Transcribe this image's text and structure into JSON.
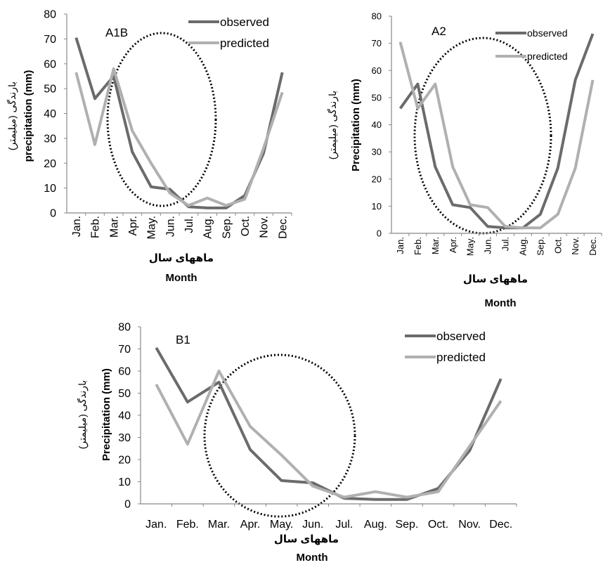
{
  "colors": {
    "observed": "#6b6b6b",
    "predicted": "#b0b0b0",
    "axis": "#888888",
    "circle": "#000000"
  },
  "chart_data": [
    {
      "type": "line",
      "panel_label": "A1B",
      "ylabel_fa": "بارندگی (میلیمتر)",
      "ylabel_en": "precipitation (mm)",
      "xlabel_fa": "ماههای سال",
      "xlabel_en": "Month",
      "ylim": [
        0,
        80
      ],
      "yticks": [
        "0",
        "10",
        "20",
        "30",
        "40",
        "50",
        "60",
        "70",
        "80"
      ],
      "categories": [
        "Jan.",
        "Feb.",
        "Mar.",
        "Apr.",
        "May.",
        "Jun.",
        "Jul.",
        "Aug.",
        "Sep.",
        "Oct.",
        "Nov.",
        "Dec."
      ],
      "series": [
        {
          "name": "observed",
          "values": [
            70.5,
            46,
            55,
            24.5,
            10.5,
            9.5,
            2.5,
            2,
            2,
            7,
            24,
            56.5
          ]
        },
        {
          "name": "predicted",
          "values": [
            56.5,
            27.5,
            58,
            33,
            20,
            8,
            3,
            6,
            3,
            5.5,
            26,
            48.5
          ]
        }
      ],
      "legend": "top-right",
      "grid": false
    },
    {
      "type": "line",
      "panel_label": "A2",
      "ylabel_fa": "بارندگی (میلیمتر)",
      "ylabel_en": "Precipitation (mm)",
      "xlabel_fa": "ماههای سال",
      "xlabel_en": "Month",
      "ylim": [
        0,
        80
      ],
      "yticks": [
        "0",
        "10",
        "20",
        "30",
        "40",
        "50",
        "60",
        "70",
        "80"
      ],
      "categories": [
        "Jan.",
        "Feb.",
        "Mar.",
        "Apr.",
        "May.",
        "Jun.",
        "Jul.",
        "Aug.",
        "Sep.",
        "Oct.",
        "Nov.",
        "Dec."
      ],
      "series": [
        {
          "name": "observed",
          "values": [
            46,
            55,
            24.5,
            10.5,
            9.5,
            2.5,
            2,
            2,
            7,
            24,
            56.5,
            73.5
          ]
        },
        {
          "name": "predicted",
          "values": [
            70.5,
            46,
            55,
            24.5,
            10.5,
            9.5,
            2.5,
            2,
            2,
            7,
            24,
            56.5
          ]
        }
      ],
      "legend": "top-right",
      "grid": false
    },
    {
      "type": "line",
      "panel_label": "B1",
      "ylabel_fa": "بارندگی (میلیمتر)",
      "ylabel_en": "Precipitation (mm)",
      "xlabel_fa": "ماههای سال",
      "xlabel_en": "Month",
      "ylim": [
        0,
        80
      ],
      "yticks": [
        "0",
        "10",
        "20",
        "30",
        "40",
        "50",
        "60",
        "70",
        "80"
      ],
      "categories": [
        "Jan.",
        "Feb.",
        "Mar.",
        "Apr.",
        "May.",
        "Jun.",
        "Jul.",
        "Aug.",
        "Sep.",
        "Oct.",
        "Nov.",
        "Dec."
      ],
      "series": [
        {
          "name": "observed",
          "values": [
            70.5,
            46,
            55,
            24.5,
            10.5,
            9.5,
            2.5,
            2,
            2,
            7,
            24,
            56.5
          ]
        },
        {
          "name": "predicted",
          "values": [
            54,
            27,
            60,
            35,
            22,
            8,
            3,
            5.5,
            3,
            5.5,
            26,
            46.5
          ]
        }
      ],
      "legend": "top-right",
      "grid": false
    }
  ]
}
